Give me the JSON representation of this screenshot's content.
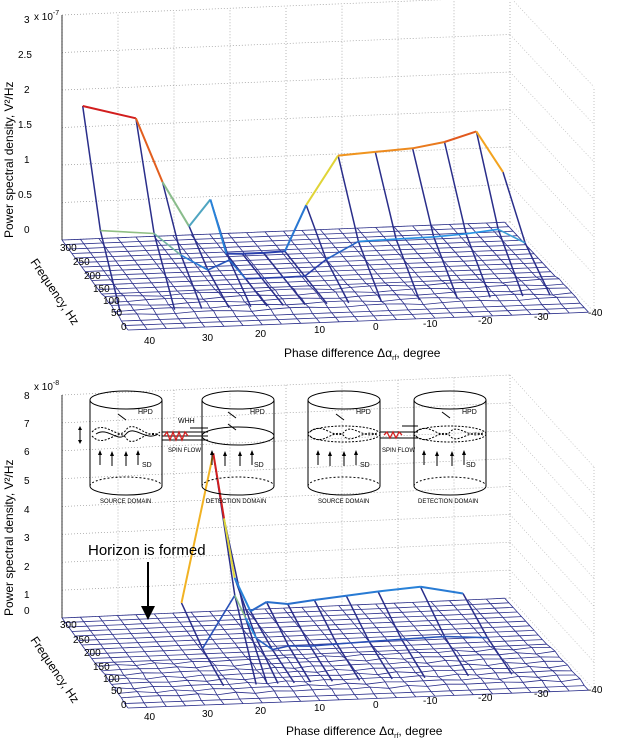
{
  "charts": [
    {
      "chart_data": {
        "type": "surface",
        "ylabel_left": "Power spectral density, V²/Hz",
        "z_exponent": "x 10",
        "z_exponent_power": "-7",
        "zlim": [
          0,
          3
        ],
        "z_ticks": [
          "0",
          "0.5",
          "1",
          "1.5",
          "2",
          "2.5",
          "3"
        ],
        "xlabel_prefix": "Phase difference Δα",
        "xlabel_sub": "rf",
        "xlabel_suffix": ", degree",
        "x_ticks": [
          "40",
          "30",
          "20",
          "10",
          "0",
          "-10",
          "-20",
          "-30",
          "-40"
        ],
        "depth_label": "Frequency, Hz",
        "depth_ticks": [
          "300",
          "250",
          "200",
          "150",
          "100",
          "50",
          "0"
        ],
        "ridge": {
          "phase_deg": [
            44,
            34,
            29,
            24,
            20,
            17,
            14,
            10,
            6,
            2,
            -4,
            -11,
            -18,
            -24,
            -30,
            -35
          ],
          "psd": [
            2.15e-07,
            1.95e-07,
            1.05e-07,
            4.2e-08,
            7.8e-08,
            2e-09,
            1e-09,
            1e-09,
            2e-09,
            6.5e-08,
            1.32e-07,
            1.35e-07,
            1.38e-07,
            1.45e-07,
            1.58e-07,
            1e-07
          ]
        }
      }
    },
    {
      "chart_data": {
        "type": "surface",
        "ylabel_left": "Power spectral density, V²/Hz",
        "z_exponent": "x 10",
        "z_exponent_power": "-8",
        "zlim": [
          0,
          8
        ],
        "z_ticks": [
          "0",
          "1",
          "2",
          "3",
          "4",
          "5",
          "6",
          "7",
          "8"
        ],
        "xlabel_prefix": "Phase difference Δα",
        "xlabel_sub": "rf",
        "xlabel_suffix": ", degree",
        "x_ticks": [
          "40",
          "30",
          "20",
          "10",
          "0",
          "-10",
          "-20",
          "-30",
          "-40"
        ],
        "depth_label": "Frequency, Hz",
        "depth_ticks": [
          "300",
          "250",
          "200",
          "150",
          "100",
          "50",
          "0"
        ],
        "annotation": "Horizon is formed",
        "ridge": {
          "phase_deg": [
            25,
            19,
            17,
            15,
            12,
            9,
            5,
            0,
            -6,
            -12,
            -20,
            -28
          ],
          "psd": [
            1e-08,
            6.2e-08,
            3.9e-08,
            1.8e-08,
            6e-09,
            9e-09,
            8e-09,
            9e-09,
            1e-08,
            1.1e-08,
            1.2e-08,
            9e-09
          ]
        }
      },
      "insets": [
        {
          "hpd_label": "HPD",
          "sd_label": "SD",
          "whh_label": "WHH",
          "flow_label": "SPIN FLOW",
          "source_label": "SOURCE DOMAIN",
          "detect_label": "DETECTION DOMAIN"
        },
        {
          "hpd_label": "HPD",
          "sd_label": "SD",
          "flow_label": "SPIN FLOW",
          "source_label": "SOURCE DOMAIN",
          "detect_label": "DETECTION DOMAIN"
        }
      ]
    }
  ],
  "colors": {
    "mesh": "#2a2e8a",
    "ridge_high": "#d42020",
    "ridge_mid": "#f0c020",
    "ridge_low": "#2fa0e0"
  }
}
